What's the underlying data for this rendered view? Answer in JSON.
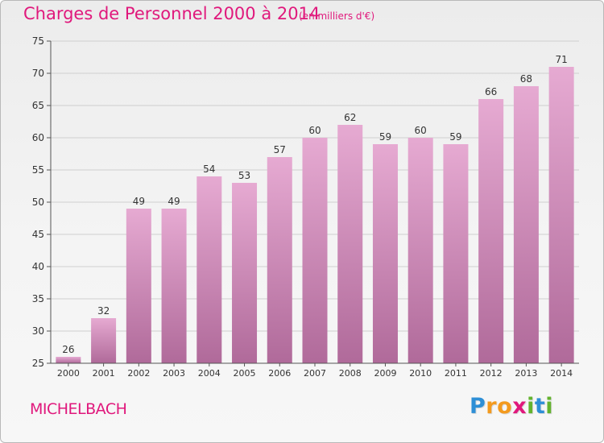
{
  "header": {
    "title": "Charges de Personnel 2000 à 2014",
    "unit": "(en milliers d'€)"
  },
  "footer": {
    "place": "MICHELBACH",
    "brand_letters": [
      {
        "ch": "P",
        "color": "#2e8fd6"
      },
      {
        "ch": "r",
        "color": "#f39a1e"
      },
      {
        "ch": "o",
        "color": "#f39a1e"
      },
      {
        "ch": "x",
        "color": "#e0187c"
      },
      {
        "ch": "i",
        "color": "#63b32e"
      },
      {
        "ch": "t",
        "color": "#2e8fd6"
      },
      {
        "ch": "i",
        "color": "#63b32e"
      }
    ]
  },
  "colors": {
    "accent": "#e0187c",
    "bar_top": "#e6aad2",
    "bar_bottom": "#b06a9a",
    "grid": "#cfcfcf",
    "axis_text": "#333333"
  },
  "chart_data": {
    "type": "bar",
    "title": "Charges de Personnel 2000 à 2014",
    "subtitle": "(en milliers d'€)",
    "categories": [
      "2000",
      "2001",
      "2002",
      "2003",
      "2004",
      "2005",
      "2006",
      "2007",
      "2008",
      "2009",
      "2010",
      "2011",
      "2012",
      "2013",
      "2014"
    ],
    "values": [
      26,
      32,
      49,
      49,
      54,
      53,
      57,
      60,
      62,
      59,
      60,
      59,
      66,
      68,
      71
    ],
    "ylim": [
      25,
      75
    ],
    "yticks": [
      25,
      30,
      35,
      40,
      45,
      50,
      55,
      60,
      65,
      70,
      75
    ],
    "grid": "horizontal",
    "data_labels": true
  }
}
